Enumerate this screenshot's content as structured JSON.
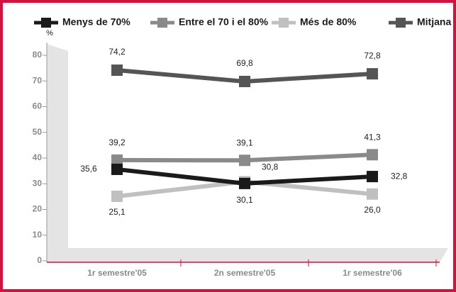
{
  "chart_data": {
    "type": "line",
    "y_label": "%",
    "categories": [
      "1r semestre'05",
      "2n semestre'05",
      "1r semestre'06"
    ],
    "series": [
      {
        "name": "Menys de 70%",
        "color": "#1a1a1a",
        "values": [
          35.6,
          30.1,
          32.8
        ],
        "value_labels": [
          "35,6",
          "30,1",
          "32,8"
        ]
      },
      {
        "name": "Entre el 70 i el 80%",
        "color": "#8a8a8a",
        "values": [
          39.2,
          39.1,
          41.3
        ],
        "value_labels": [
          "39,2",
          "39,1",
          "41,3"
        ]
      },
      {
        "name": "Més de 80%",
        "color": "#c0c0c0",
        "values": [
          25.1,
          30.8,
          26.0
        ],
        "value_labels": [
          "25,1",
          "30,8",
          "26,0"
        ]
      },
      {
        "name": "Mitjana",
        "color": "#555555",
        "values": [
          74.2,
          69.8,
          72.8
        ],
        "value_labels": [
          "74,2",
          "69,8",
          "72,8"
        ]
      }
    ],
    "ylim": [
      0,
      80
    ],
    "yticks": [
      0,
      10,
      20,
      30,
      40,
      50,
      60,
      70,
      80
    ]
  }
}
